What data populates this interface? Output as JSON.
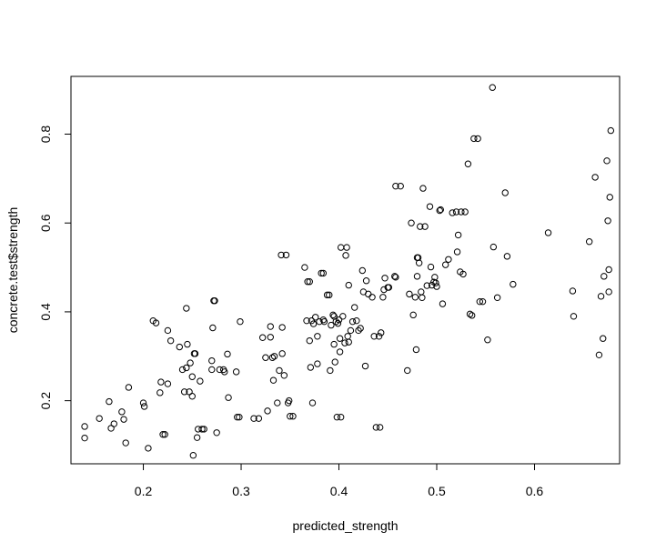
{
  "chart_data": {
    "type": "scatter",
    "title": "",
    "xlabel": "predicted_strength",
    "ylabel": "concrete.test$strength",
    "xlim": [
      0.126,
      0.687
    ],
    "ylim": [
      0.058,
      0.93
    ],
    "xticks": [
      0.2,
      0.3,
      0.4,
      0.5,
      0.6
    ],
    "yticks": [
      0.2,
      0.4,
      0.6,
      0.8
    ],
    "xtick_labels": [
      "0.2",
      "0.3",
      "0.4",
      "0.5",
      "0.6"
    ],
    "ytick_labels": [
      "0.2",
      "0.4",
      "0.6",
      "0.8"
    ],
    "grid": false,
    "point_color": "#000000",
    "points": [
      [
        0.14,
        0.142
      ],
      [
        0.14,
        0.116
      ],
      [
        0.155,
        0.16
      ],
      [
        0.165,
        0.198
      ],
      [
        0.167,
        0.138
      ],
      [
        0.17,
        0.148
      ],
      [
        0.178,
        0.175
      ],
      [
        0.18,
        0.158
      ],
      [
        0.182,
        0.105
      ],
      [
        0.185,
        0.23
      ],
      [
        0.2,
        0.195
      ],
      [
        0.201,
        0.187
      ],
      [
        0.205,
        0.093
      ],
      [
        0.21,
        0.38
      ],
      [
        0.213,
        0.375
      ],
      [
        0.217,
        0.218
      ],
      [
        0.218,
        0.242
      ],
      [
        0.22,
        0.124
      ],
      [
        0.222,
        0.124
      ],
      [
        0.225,
        0.238
      ],
      [
        0.225,
        0.358
      ],
      [
        0.228,
        0.335
      ],
      [
        0.237,
        0.321
      ],
      [
        0.24,
        0.27
      ],
      [
        0.242,
        0.22
      ],
      [
        0.244,
        0.408
      ],
      [
        0.244,
        0.274
      ],
      [
        0.245,
        0.327
      ],
      [
        0.247,
        0.22
      ],
      [
        0.248,
        0.285
      ],
      [
        0.25,
        0.21
      ],
      [
        0.25,
        0.254
      ],
      [
        0.251,
        0.077
      ],
      [
        0.252,
        0.306
      ],
      [
        0.253,
        0.306
      ],
      [
        0.255,
        0.117
      ],
      [
        0.256,
        0.136
      ],
      [
        0.258,
        0.244
      ],
      [
        0.26,
        0.136
      ],
      [
        0.262,
        0.136
      ],
      [
        0.27,
        0.27
      ],
      [
        0.27,
        0.29
      ],
      [
        0.271,
        0.364
      ],
      [
        0.272,
        0.425
      ],
      [
        0.273,
        0.425
      ],
      [
        0.275,
        0.128
      ],
      [
        0.278,
        0.27
      ],
      [
        0.282,
        0.27
      ],
      [
        0.283,
        0.265
      ],
      [
        0.286,
        0.305
      ],
      [
        0.287,
        0.207
      ],
      [
        0.295,
        0.265
      ],
      [
        0.296,
        0.163
      ],
      [
        0.298,
        0.163
      ],
      [
        0.299,
        0.378
      ],
      [
        0.313,
        0.16
      ],
      [
        0.318,
        0.16
      ],
      [
        0.322,
        0.342
      ],
      [
        0.325,
        0.297
      ],
      [
        0.327,
        0.177
      ],
      [
        0.33,
        0.367
      ],
      [
        0.33,
        0.343
      ],
      [
        0.332,
        0.297
      ],
      [
        0.333,
        0.246
      ],
      [
        0.334,
        0.3
      ],
      [
        0.337,
        0.195
      ],
      [
        0.339,
        0.268
      ],
      [
        0.341,
        0.528
      ],
      [
        0.342,
        0.365
      ],
      [
        0.342,
        0.306
      ],
      [
        0.344,
        0.257
      ],
      [
        0.346,
        0.528
      ],
      [
        0.348,
        0.195
      ],
      [
        0.349,
        0.2
      ],
      [
        0.35,
        0.165
      ],
      [
        0.353,
        0.165
      ],
      [
        0.365,
        0.5
      ],
      [
        0.367,
        0.38
      ],
      [
        0.368,
        0.468
      ],
      [
        0.37,
        0.468
      ],
      [
        0.37,
        0.335
      ],
      [
        0.371,
        0.275
      ],
      [
        0.372,
        0.38
      ],
      [
        0.373,
        0.195
      ],
      [
        0.374,
        0.373
      ],
      [
        0.376,
        0.388
      ],
      [
        0.378,
        0.345
      ],
      [
        0.378,
        0.283
      ],
      [
        0.38,
        0.378
      ],
      [
        0.382,
        0.487
      ],
      [
        0.384,
        0.487
      ],
      [
        0.384,
        0.382
      ],
      [
        0.385,
        0.378
      ],
      [
        0.388,
        0.438
      ],
      [
        0.39,
        0.438
      ],
      [
        0.391,
        0.268
      ],
      [
        0.392,
        0.37
      ],
      [
        0.394,
        0.393
      ],
      [
        0.395,
        0.39
      ],
      [
        0.395,
        0.327
      ],
      [
        0.396,
        0.287
      ],
      [
        0.397,
        0.378
      ],
      [
        0.398,
        0.163
      ],
      [
        0.399,
        0.374
      ],
      [
        0.4,
        0.382
      ],
      [
        0.401,
        0.34
      ],
      [
        0.401,
        0.31
      ],
      [
        0.402,
        0.545
      ],
      [
        0.402,
        0.163
      ],
      [
        0.404,
        0.39
      ],
      [
        0.406,
        0.33
      ],
      [
        0.407,
        0.527
      ],
      [
        0.408,
        0.545
      ],
      [
        0.409,
        0.345
      ],
      [
        0.41,
        0.332
      ],
      [
        0.41,
        0.46
      ],
      [
        0.412,
        0.358
      ],
      [
        0.414,
        0.378
      ],
      [
        0.416,
        0.41
      ],
      [
        0.418,
        0.38
      ],
      [
        0.42,
        0.358
      ],
      [
        0.422,
        0.363
      ],
      [
        0.424,
        0.493
      ],
      [
        0.425,
        0.445
      ],
      [
        0.427,
        0.278
      ],
      [
        0.428,
        0.47
      ],
      [
        0.43,
        0.44
      ],
      [
        0.434,
        0.433
      ],
      [
        0.436,
        0.345
      ],
      [
        0.438,
        0.14
      ],
      [
        0.441,
        0.345
      ],
      [
        0.442,
        0.14
      ],
      [
        0.443,
        0.353
      ],
      [
        0.445,
        0.433
      ],
      [
        0.446,
        0.45
      ],
      [
        0.447,
        0.476
      ],
      [
        0.45,
        0.455
      ],
      [
        0.451,
        0.455
      ],
      [
        0.457,
        0.48
      ],
      [
        0.458,
        0.478
      ],
      [
        0.458,
        0.683
      ],
      [
        0.463,
        0.683
      ],
      [
        0.47,
        0.268
      ],
      [
        0.472,
        0.44
      ],
      [
        0.474,
        0.6
      ],
      [
        0.476,
        0.393
      ],
      [
        0.478,
        0.433
      ],
      [
        0.479,
        0.315
      ],
      [
        0.48,
        0.522
      ],
      [
        0.48,
        0.48
      ],
      [
        0.481,
        0.522
      ],
      [
        0.482,
        0.51
      ],
      [
        0.483,
        0.592
      ],
      [
        0.484,
        0.445
      ],
      [
        0.485,
        0.432
      ],
      [
        0.486,
        0.678
      ],
      [
        0.488,
        0.592
      ],
      [
        0.49,
        0.459
      ],
      [
        0.493,
        0.637
      ],
      [
        0.494,
        0.501
      ],
      [
        0.495,
        0.46
      ],
      [
        0.497,
        0.467
      ],
      [
        0.498,
        0.478
      ],
      [
        0.499,
        0.465
      ],
      [
        0.5,
        0.457
      ],
      [
        0.503,
        0.628
      ],
      [
        0.504,
        0.63
      ],
      [
        0.506,
        0.418
      ],
      [
        0.509,
        0.506
      ],
      [
        0.512,
        0.518
      ],
      [
        0.516,
        0.623
      ],
      [
        0.52,
        0.625
      ],
      [
        0.521,
        0.535
      ],
      [
        0.522,
        0.573
      ],
      [
        0.524,
        0.49
      ],
      [
        0.525,
        0.625
      ],
      [
        0.527,
        0.485
      ],
      [
        0.529,
        0.625
      ],
      [
        0.532,
        0.733
      ],
      [
        0.534,
        0.395
      ],
      [
        0.536,
        0.392
      ],
      [
        0.538,
        0.79
      ],
      [
        0.542,
        0.79
      ],
      [
        0.544,
        0.423
      ],
      [
        0.547,
        0.423
      ],
      [
        0.552,
        0.337
      ],
      [
        0.557,
        0.905
      ],
      [
        0.558,
        0.546
      ],
      [
        0.562,
        0.432
      ],
      [
        0.57,
        0.668
      ],
      [
        0.572,
        0.525
      ],
      [
        0.578,
        0.462
      ],
      [
        0.614,
        0.578
      ],
      [
        0.639,
        0.447
      ],
      [
        0.64,
        0.39
      ],
      [
        0.656,
        0.558
      ],
      [
        0.662,
        0.703
      ],
      [
        0.666,
        0.303
      ],
      [
        0.668,
        0.435
      ],
      [
        0.67,
        0.34
      ],
      [
        0.671,
        0.48
      ],
      [
        0.674,
        0.74
      ],
      [
        0.675,
        0.605
      ],
      [
        0.676,
        0.445
      ],
      [
        0.676,
        0.495
      ],
      [
        0.677,
        0.658
      ],
      [
        0.678,
        0.808
      ]
    ]
  }
}
